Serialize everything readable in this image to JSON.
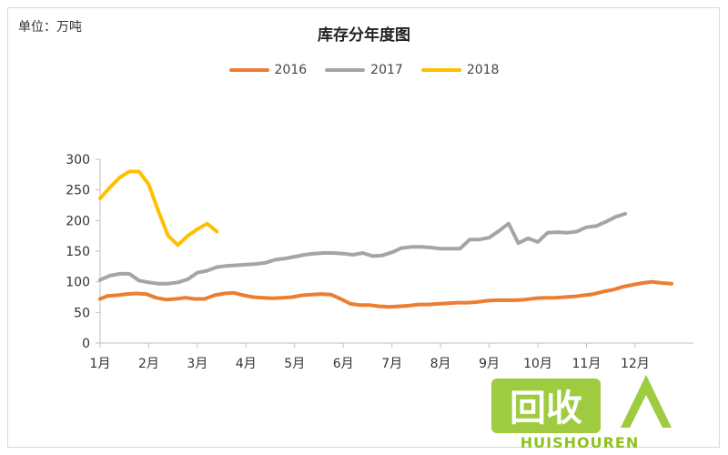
{
  "unit_label": "单位：万吨",
  "chart_data": {
    "type": "line",
    "title": "库存分年度图",
    "xlabel": "",
    "ylabel": "",
    "ylim": [
      0,
      300
    ],
    "yticks": [
      0,
      50,
      100,
      150,
      200,
      250,
      300
    ],
    "xlim": [
      1,
      13.2
    ],
    "month_labels": [
      "1月",
      "2月",
      "3月",
      "4月",
      "5月",
      "6月",
      "7月",
      "8月",
      "9月",
      "10月",
      "11月",
      "12月"
    ],
    "grid": false,
    "legend_position": "top-center",
    "series": [
      {
        "name": "2016",
        "color": "#ED7D31",
        "points": [
          [
            1.0,
            72
          ],
          [
            1.15,
            77
          ],
          [
            1.35,
            78
          ],
          [
            1.55,
            80
          ],
          [
            1.75,
            81
          ],
          [
            1.95,
            80
          ],
          [
            2.15,
            74
          ],
          [
            2.35,
            71
          ],
          [
            2.55,
            72
          ],
          [
            2.75,
            74
          ],
          [
            2.95,
            72
          ],
          [
            3.15,
            72
          ],
          [
            3.35,
            78
          ],
          [
            3.55,
            81
          ],
          [
            3.75,
            82
          ],
          [
            3.95,
            78
          ],
          [
            4.15,
            75
          ],
          [
            4.35,
            74
          ],
          [
            4.55,
            73
          ],
          [
            4.75,
            74
          ],
          [
            4.95,
            75
          ],
          [
            5.15,
            78
          ],
          [
            5.35,
            79
          ],
          [
            5.55,
            80
          ],
          [
            5.75,
            79
          ],
          [
            5.95,
            72
          ],
          [
            6.15,
            64
          ],
          [
            6.35,
            62
          ],
          [
            6.55,
            62
          ],
          [
            6.75,
            60
          ],
          [
            6.95,
            59
          ],
          [
            7.15,
            60
          ],
          [
            7.35,
            61
          ],
          [
            7.55,
            63
          ],
          [
            7.75,
            63
          ],
          [
            7.95,
            64
          ],
          [
            8.15,
            65
          ],
          [
            8.35,
            66
          ],
          [
            8.55,
            66
          ],
          [
            8.75,
            67
          ],
          [
            8.95,
            69
          ],
          [
            9.15,
            70
          ],
          [
            9.35,
            70
          ],
          [
            9.55,
            70
          ],
          [
            9.75,
            71
          ],
          [
            9.95,
            73
          ],
          [
            10.15,
            74
          ],
          [
            10.35,
            74
          ],
          [
            10.55,
            75
          ],
          [
            10.75,
            76
          ],
          [
            10.95,
            78
          ],
          [
            11.15,
            80
          ],
          [
            11.35,
            84
          ],
          [
            11.55,
            87
          ],
          [
            11.75,
            92
          ],
          [
            11.95,
            95
          ],
          [
            12.15,
            98
          ],
          [
            12.35,
            100
          ],
          [
            12.55,
            98
          ],
          [
            12.75,
            97
          ]
        ]
      },
      {
        "name": "2017",
        "color": "#A5A5A5",
        "points": [
          [
            1.0,
            103
          ],
          [
            1.2,
            110
          ],
          [
            1.4,
            113
          ],
          [
            1.6,
            113
          ],
          [
            1.8,
            102
          ],
          [
            2.0,
            99
          ],
          [
            2.2,
            97
          ],
          [
            2.4,
            97
          ],
          [
            2.6,
            99
          ],
          [
            2.8,
            104
          ],
          [
            3.0,
            115
          ],
          [
            3.2,
            118
          ],
          [
            3.4,
            124
          ],
          [
            3.6,
            126
          ],
          [
            3.8,
            127
          ],
          [
            4.0,
            128
          ],
          [
            4.2,
            129
          ],
          [
            4.4,
            131
          ],
          [
            4.6,
            136
          ],
          [
            4.8,
            138
          ],
          [
            5.0,
            141
          ],
          [
            5.2,
            144
          ],
          [
            5.4,
            146
          ],
          [
            5.6,
            147
          ],
          [
            5.8,
            147
          ],
          [
            6.0,
            146
          ],
          [
            6.2,
            144
          ],
          [
            6.4,
            147
          ],
          [
            6.6,
            142
          ],
          [
            6.8,
            143
          ],
          [
            7.0,
            148
          ],
          [
            7.2,
            155
          ],
          [
            7.4,
            157
          ],
          [
            7.6,
            157
          ],
          [
            7.8,
            156
          ],
          [
            8.0,
            154
          ],
          [
            8.2,
            154
          ],
          [
            8.4,
            154
          ],
          [
            8.6,
            169
          ],
          [
            8.8,
            169
          ],
          [
            9.0,
            172
          ],
          [
            9.2,
            183
          ],
          [
            9.4,
            195
          ],
          [
            9.6,
            163
          ],
          [
            9.8,
            171
          ],
          [
            10.0,
            165
          ],
          [
            10.2,
            180
          ],
          [
            10.4,
            181
          ],
          [
            10.6,
            180
          ],
          [
            10.8,
            182
          ],
          [
            11.0,
            189
          ],
          [
            11.2,
            191
          ],
          [
            11.4,
            198
          ],
          [
            11.6,
            206
          ],
          [
            11.8,
            211
          ]
        ]
      },
      {
        "name": "2018",
        "color": "#FFC000",
        "points": [
          [
            1.0,
            236
          ],
          [
            1.2,
            254
          ],
          [
            1.4,
            270
          ],
          [
            1.6,
            280
          ],
          [
            1.8,
            280
          ],
          [
            2.0,
            259
          ],
          [
            2.2,
            215
          ],
          [
            2.4,
            175
          ],
          [
            2.6,
            160
          ],
          [
            2.8,
            175
          ],
          [
            3.0,
            186
          ],
          [
            3.2,
            195
          ],
          [
            3.4,
            182
          ]
        ]
      }
    ]
  },
  "watermark": {
    "text_main": "回收",
    "text_sub": "HUISHOUREN",
    "color": "#8DC21F"
  }
}
